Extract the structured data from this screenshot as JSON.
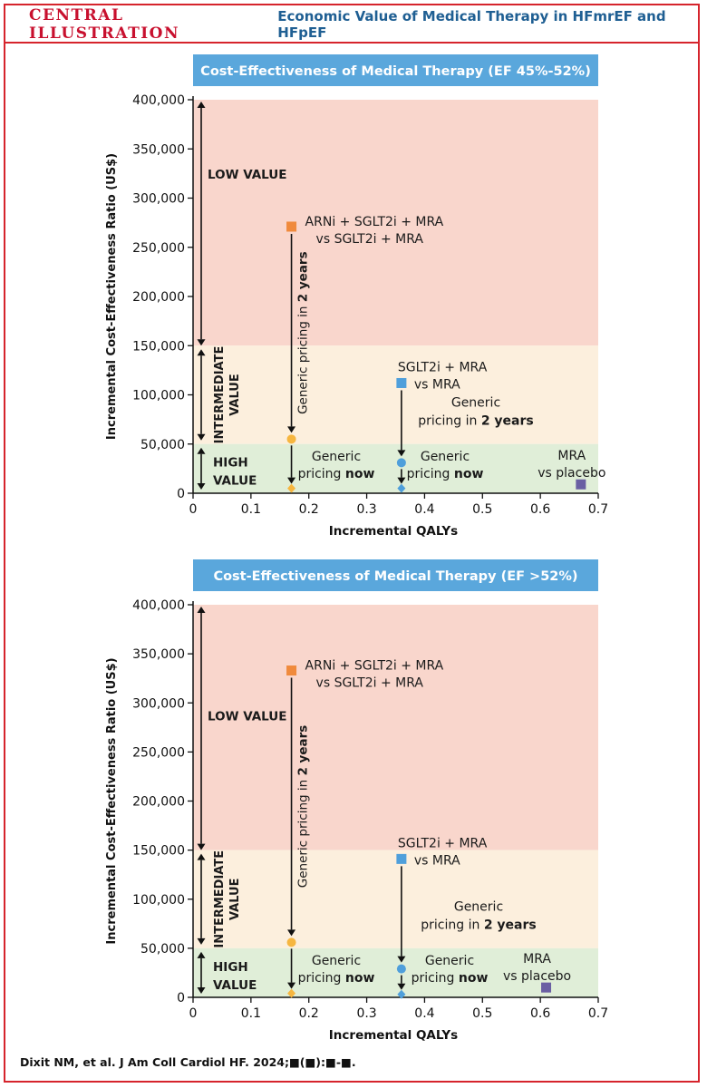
{
  "header": {
    "tag": "CENTRAL ILLUSTRATION",
    "title": "Economic Value of Medical Therapy in HFmrEF and HFpEF"
  },
  "footer": {
    "citation": "Dixit NM, et al. J Am Coll Cardiol HF. 2024;■(■):■-■."
  },
  "colors": {
    "low_value_zone": "#f9d6cc",
    "intermediate_zone": "#fcefdd",
    "high_value_zone": "#e0eed8",
    "title_banner": "#5aa7dc",
    "arni_marker": "#f08a3c",
    "generic_marker": "#f6b640",
    "sglt2i_marker": "#4f9fdb",
    "mra_marker": "#6a5fa3"
  },
  "chart_data": [
    {
      "type": "scatter",
      "title": "Cost-Effectiveness of Medical Therapy (EF 45%-52%)",
      "xlabel": "Incremental QALYs",
      "ylabel": "Incremental Cost-Effectiveness Ratio (US$)",
      "xlim": [
        0,
        0.7
      ],
      "ylim": [
        0,
        400000
      ],
      "x_ticks": [
        "0",
        "0.1",
        "0.2",
        "0.3",
        "0.4",
        "0.5",
        "0.6",
        "0.7"
      ],
      "y_ticks": [
        "0",
        "50,000",
        "100,000",
        "150,000",
        "200,000",
        "250,000",
        "300,000",
        "350,000",
        "400,000"
      ],
      "zones": [
        {
          "name": "LOW VALUE",
          "label": [
            "LOW VALUE"
          ],
          "from": 150000,
          "to": 400000
        },
        {
          "name": "INTERMEDIATE VALUE",
          "label": [
            "INTERMEDIATE",
            "VALUE"
          ],
          "from": 50000,
          "to": 150000
        },
        {
          "name": "HIGH VALUE",
          "label": [
            "HIGH",
            "VALUE"
          ],
          "from": 0,
          "to": 50000
        }
      ],
      "points": [
        {
          "id": "arni",
          "shape": "square",
          "x": 0.17,
          "y": 271000,
          "label": [
            "ARNi + SGLT2i + MRA",
            "vs SGLT2i + MRA"
          ]
        },
        {
          "id": "arni-generic-2y",
          "shape": "circle",
          "x": 0.17,
          "y": 55000
        },
        {
          "id": "arni-generic-now",
          "shape": "diamond",
          "x": 0.17,
          "y": 5000
        },
        {
          "id": "sglt2i",
          "shape": "square",
          "x": 0.36,
          "y": 112000,
          "label": [
            "SGLT2i + MRA",
            "vs MRA"
          ]
        },
        {
          "id": "sglt2i-generic-2y",
          "shape": "circle",
          "x": 0.36,
          "y": 31000
        },
        {
          "id": "sglt2i-generic-now",
          "shape": "diamond",
          "x": 0.36,
          "y": 5000
        },
        {
          "id": "mra",
          "shape": "square",
          "x": 0.67,
          "y": 9000,
          "label": [
            "MRA",
            "vs placebo"
          ]
        }
      ],
      "annotations": {
        "arni_2y": "Generic pricing in 2 years",
        "generic_now_1": [
          "Generic",
          "pricing now"
        ],
        "generic_now_2": [
          "Generic",
          "pricing now"
        ],
        "sglt2i_2y": [
          "Generic",
          "pricing in 2 years"
        ]
      }
    },
    {
      "type": "scatter",
      "title": "Cost-Effectiveness of Medical Therapy (EF >52%)",
      "xlabel": "Incremental QALYs",
      "ylabel": "Incremental Cost-Effectiveness Ratio (US$)",
      "xlim": [
        0,
        0.7
      ],
      "ylim": [
        0,
        400000
      ],
      "x_ticks": [
        "0",
        "0.1",
        "0.2",
        "0.3",
        "0.4",
        "0.5",
        "0.6",
        "0.7"
      ],
      "y_ticks": [
        "0",
        "50,000",
        "100,000",
        "150,000",
        "200,000",
        "250,000",
        "300,000",
        "350,000",
        "400,000"
      ],
      "zones": [
        {
          "name": "LOW VALUE",
          "label": [
            "LOW VALUE"
          ],
          "from": 150000,
          "to": 400000
        },
        {
          "name": "INTERMEDIATE VALUE",
          "label": [
            "INTERMEDIATE",
            "VALUE"
          ],
          "from": 50000,
          "to": 150000
        },
        {
          "name": "HIGH VALUE",
          "label": [
            "HIGH",
            "VALUE"
          ],
          "from": 0,
          "to": 50000
        }
      ],
      "points": [
        {
          "id": "arni",
          "shape": "square",
          "x": 0.17,
          "y": 333000,
          "label": [
            "ARNi + SGLT2i + MRA",
            "vs SGLT2i + MRA"
          ]
        },
        {
          "id": "arni-generic-2y",
          "shape": "circle",
          "x": 0.17,
          "y": 56000
        },
        {
          "id": "arni-generic-now",
          "shape": "diamond",
          "x": 0.17,
          "y": 4000
        },
        {
          "id": "sglt2i",
          "shape": "square",
          "x": 0.36,
          "y": 141000,
          "label": [
            "SGLT2i + MRA",
            "vs MRA"
          ]
        },
        {
          "id": "sglt2i-generic-2y",
          "shape": "circle",
          "x": 0.36,
          "y": 29000
        },
        {
          "id": "sglt2i-generic-now",
          "shape": "diamond",
          "x": 0.36,
          "y": 3000
        },
        {
          "id": "mra",
          "shape": "square",
          "x": 0.61,
          "y": 10000,
          "label": [
            "MRA",
            "vs placebo"
          ]
        }
      ],
      "annotations": {
        "arni_2y": "Generic pricing in 2 years",
        "generic_now_1": [
          "Generic",
          "pricing now"
        ],
        "generic_now_2": [
          "Generic",
          "pricing now"
        ],
        "sglt2i_2y": [
          "Generic",
          "pricing in 2 years"
        ]
      }
    }
  ]
}
